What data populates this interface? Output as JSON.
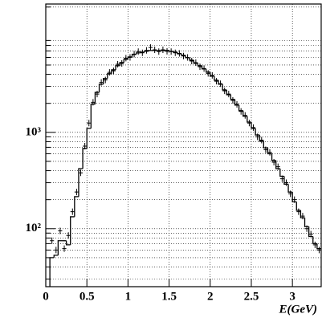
{
  "chart_data": {
    "type": "histogram",
    "x_label": "E(GeV)",
    "bins": [
      0.05,
      0.1,
      0.15,
      0.2,
      0.25,
      0.3,
      0.35,
      0.4,
      0.45,
      0.5,
      0.55,
      0.6,
      0.65,
      0.7,
      0.75,
      0.8,
      0.85,
      0.9,
      0.95,
      1.0,
      1.05,
      1.1,
      1.15,
      1.2,
      1.25,
      1.3,
      1.35,
      1.4,
      1.45,
      1.5,
      1.55,
      1.6,
      1.65,
      1.7,
      1.75,
      1.8,
      1.85,
      1.9,
      1.95,
      2.0,
      2.05,
      2.1,
      2.15,
      2.2,
      2.25,
      2.3,
      2.35,
      2.4,
      2.45,
      2.5,
      2.55,
      2.6,
      2.65,
      2.7,
      2.75,
      2.8,
      2.85,
      2.9,
      2.95,
      3.0,
      3.05,
      3.1,
      3.15,
      3.2,
      3.25,
      3.3,
      3.35
    ],
    "counts": [
      50,
      53,
      75,
      75,
      68,
      133,
      215,
      420,
      680,
      1100,
      1960,
      2600,
      3160,
      3620,
      4060,
      4460,
      4920,
      5310,
      5740,
      6070,
      6430,
      6680,
      6810,
      6940,
      7080,
      7080,
      7080,
      7080,
      7080,
      6940,
      6810,
      6550,
      6310,
      5960,
      5620,
      5210,
      4920,
      4550,
      4220,
      3830,
      3480,
      3160,
      2760,
      2460,
      2200,
      1920,
      1680,
      1470,
      1280,
      1100,
      940,
      810,
      690,
      600,
      510,
      420,
      350,
      290,
      240,
      190,
      155,
      130,
      105,
      83,
      70,
      62
    ],
    "color": "#000000",
    "points": {
      "values": [
        75,
        60,
        95,
        62,
        85,
        150,
        240,
        380,
        720,
        1250,
        2050,
        2500,
        3300,
        3500,
        4200,
        4350,
        5100,
        5200,
        5900,
        6000,
        6500,
        6900,
        6700,
        7100,
        7600,
        7200,
        6900,
        7200,
        6950,
        6900,
        6700,
        6600,
        6200,
        6000,
        5500,
        5300,
        4800,
        4600,
        4100,
        3900,
        3400,
        3200,
        2700,
        2500,
        2150,
        1950,
        1650,
        1500,
        1250,
        1120,
        900,
        830,
        660,
        620,
        490,
        440,
        330,
        300,
        230,
        200,
        150,
        135,
        100,
        88,
        68,
        60
      ],
      "color": "#000000"
    },
    "xlim": [
      0,
      3.35
    ],
    "ylim": [
      25,
      21500
    ],
    "log_y": true,
    "xticks": [
      0,
      0.5,
      1,
      1.5,
      2,
      2.5,
      3
    ],
    "yticks": [
      {
        "value": 100,
        "label": "10²"
      },
      {
        "value": 1000,
        "label": "10³"
      }
    ],
    "minor_yticks": [
      30,
      40,
      50,
      60,
      70,
      80,
      90,
      200,
      300,
      400,
      500,
      600,
      700,
      800,
      900,
      2000,
      3000,
      4000,
      5000,
      6000,
      7000,
      8000,
      9000,
      20000
    ],
    "grid": true
  }
}
